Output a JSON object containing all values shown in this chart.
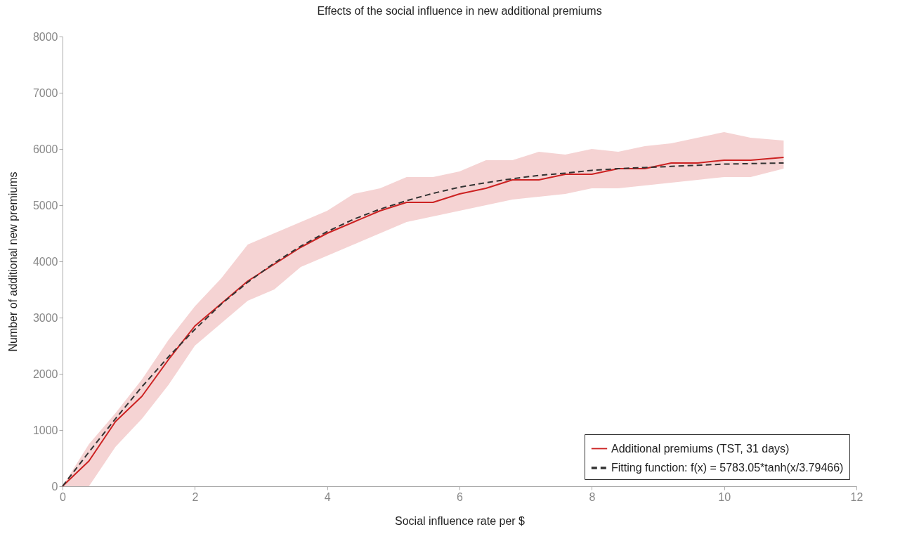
{
  "chart_data": {
    "type": "line",
    "title": "Effects of the social influence in new additional premiums",
    "xlabel": "Social influence rate per $",
    "ylabel": "Number of additional new premiums",
    "x": [
      0,
      0.4,
      0.8,
      1.2,
      1.6,
      2.0,
      2.4,
      2.8,
      3.2,
      3.6,
      4.0,
      4.4,
      4.8,
      5.2,
      5.6,
      6.0,
      6.4,
      6.8,
      7.2,
      7.6,
      8.0,
      8.4,
      8.8,
      9.2,
      9.6,
      10.0,
      10.4,
      10.9
    ],
    "series": [
      {
        "name": "Additional premiums (TST, 31 days)",
        "color": "#cc2222",
        "line_style": "solid",
        "values": [
          0,
          450,
          1150,
          1600,
          2250,
          2850,
          3250,
          3650,
          3950,
          4250,
          4500,
          4700,
          4900,
          5050,
          5050,
          5200,
          5300,
          5450,
          5450,
          5550,
          5550,
          5650,
          5650,
          5750,
          5750,
          5800,
          5800,
          5850
        ],
        "lower": [
          0,
          0,
          700,
          1200,
          1800,
          2500,
          2900,
          3300,
          3500,
          3900,
          4100,
          4300,
          4500,
          4700,
          4800,
          4900,
          5000,
          5100,
          5150,
          5200,
          5300,
          5300,
          5350,
          5400,
          5450,
          5500,
          5500,
          5650
        ],
        "upper": [
          0,
          750,
          1300,
          1900,
          2600,
          3200,
          3700,
          4300,
          4500,
          4700,
          4900,
          5200,
          5300,
          5500,
          5500,
          5600,
          5800,
          5800,
          5950,
          5900,
          6000,
          5950,
          6050,
          6100,
          6200,
          6300,
          6200,
          6150
        ]
      },
      {
        "name": "Fitting function: f(x) = 5783.05*tanh(x/3.79466)",
        "color": "#333333",
        "line_style": "dashed",
        "values": [
          0,
          610,
          1200,
          1770,
          2300,
          2790,
          3240,
          3630,
          3970,
          4270,
          4530,
          4750,
          4930,
          5080,
          5210,
          5320,
          5400,
          5470,
          5530,
          5570,
          5620,
          5650,
          5670,
          5690,
          5710,
          5730,
          5740,
          5750
        ]
      }
    ],
    "xlim": [
      0,
      12
    ],
    "xticks": [
      0,
      2,
      4,
      6,
      8,
      10,
      12
    ],
    "ylim": [
      0,
      8000
    ],
    "yticks": [
      0,
      1000,
      2000,
      3000,
      4000,
      5000,
      6000,
      7000,
      8000
    ],
    "grid": false,
    "legend": "bottom right"
  }
}
